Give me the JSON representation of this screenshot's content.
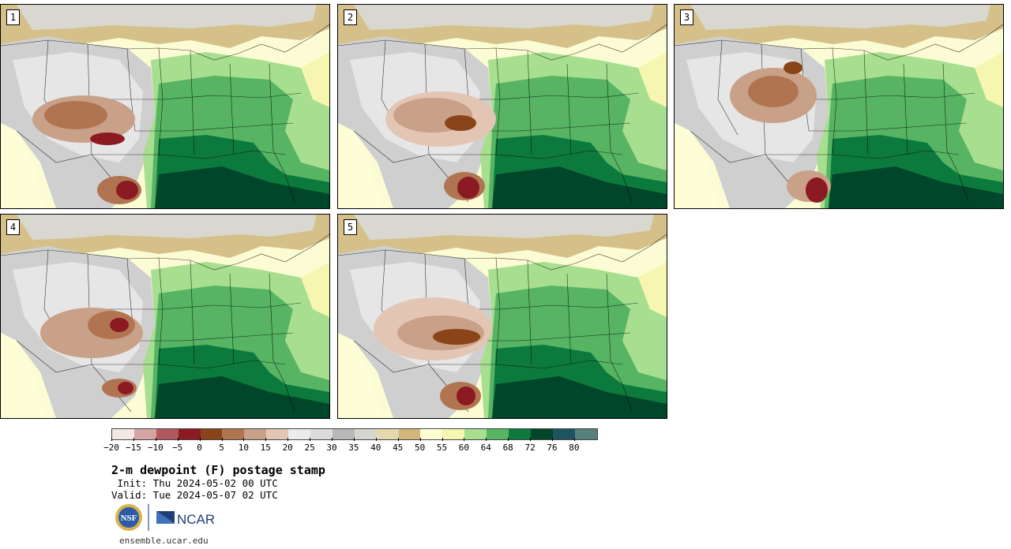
{
  "panels": [
    {
      "label": "1"
    },
    {
      "label": "2"
    },
    {
      "label": "3"
    },
    {
      "label": "4"
    },
    {
      "label": "5"
    }
  ],
  "colorbar": {
    "colors": [
      "#f3e8e6",
      "#d4a3a4",
      "#b05a5f",
      "#8b1a22",
      "#8a4419",
      "#b07550",
      "#c9a088",
      "#e3c5b4",
      "#ececec",
      "#dcdcdc",
      "#b8b8b8",
      "#d6d6d0",
      "#e4d8ae",
      "#d2b67a",
      "#ffffd4",
      "#f6f6b0",
      "#a8de90",
      "#56b463",
      "#0d7a3d",
      "#00462a",
      "#1e5462",
      "#57807f"
    ],
    "tick_labels": [
      "−20",
      "−15",
      "−10",
      "−5",
      "0",
      "5",
      "10",
      "15",
      "20",
      "25",
      "30",
      "35",
      "40",
      "45",
      "50",
      "55",
      "60",
      "64",
      "68",
      "72",
      "76",
      "80"
    ]
  },
  "title": "2-m dewpoint (F) postage stamp",
  "init_line": " Init: Thu 2024-05-02 00 UTC",
  "valid_line": "Valid: Tue 2024-05-07 02 UTC",
  "logos": {
    "nsf": "NSF",
    "ncar": "NCAR"
  },
  "footer": "ensemble.ucar.edu"
}
